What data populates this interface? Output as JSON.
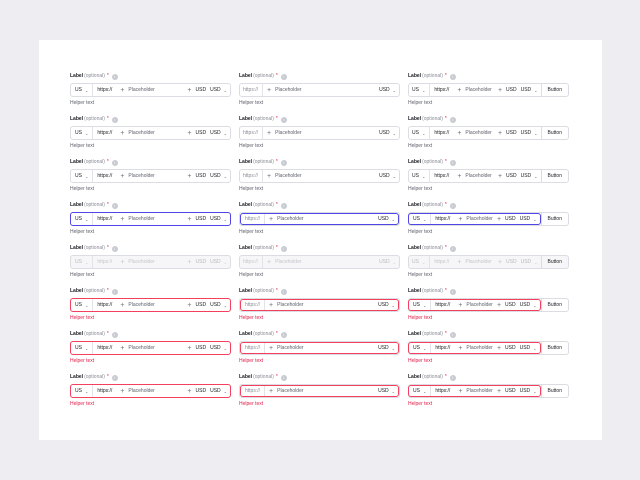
{
  "field": {
    "label": "Label",
    "optional": "(optional)",
    "required_mark": "*",
    "info_glyph": "i",
    "country": "US",
    "protocol": "https://",
    "placeholder": "Placeholder",
    "currency": "USD",
    "currency_select": "USD",
    "button": "Button",
    "helper": "Helper text"
  },
  "rows": [
    {
      "state": "default"
    },
    {
      "state": "hover"
    },
    {
      "state": "filled"
    },
    {
      "state": "focus"
    },
    {
      "state": "disabled"
    },
    {
      "state": "error"
    },
    {
      "state": "error-hover"
    },
    {
      "state": "error-focus"
    }
  ],
  "colors": {
    "accent": "#4f46e5",
    "error": "#f43f5e",
    "border": "#dcdde3"
  }
}
